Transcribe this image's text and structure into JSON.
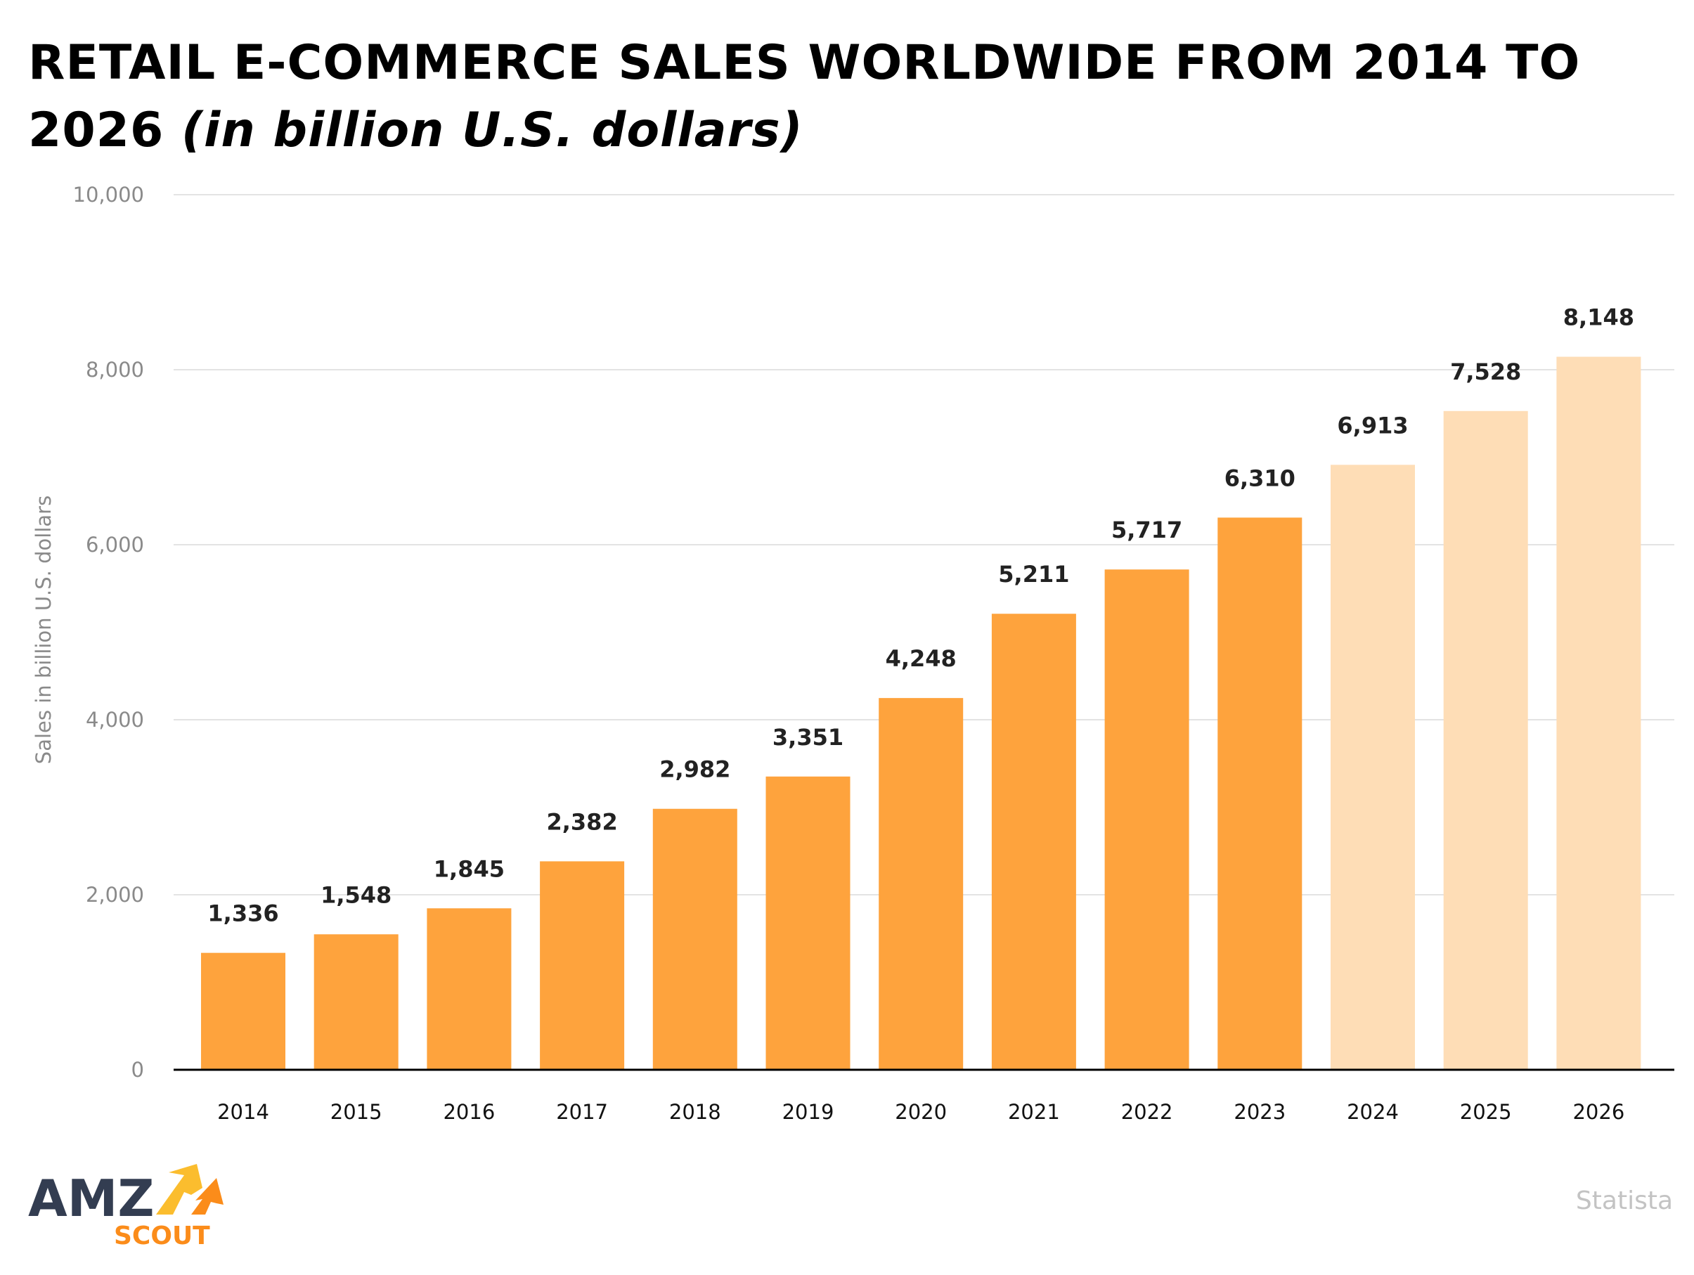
{
  "title": {
    "main": "RETAIL E-COMMERCE SALES WORLDWIDE FROM 2014 TO 2026",
    "sub": "(in billion U.S. dollars)"
  },
  "source": "Statista",
  "logo": {
    "text": "AMZ",
    "subtext": "SCOUT"
  },
  "colors": {
    "actual": "#FEA33D",
    "forecast": "#FEDDB6",
    "grid": "#e3e3e3",
    "axis": "#000000"
  },
  "chart_data": {
    "type": "bar",
    "title": "RETAIL E-COMMERCE SALES WORLDWIDE FROM 2014 TO 2026 (in billion U.S. dollars)",
    "xlabel": "",
    "ylabel": "Sales in billion U.S. dollars",
    "ylim": [
      0,
      10000
    ],
    "yticks": [
      0,
      2000,
      4000,
      6000,
      8000,
      10000
    ],
    "ytick_labels": [
      "0",
      "2,000",
      "4,000",
      "6,000",
      "8,000",
      "10,000"
    ],
    "grid": true,
    "categories": [
      "2014",
      "2015",
      "2016",
      "2017",
      "2018",
      "2019",
      "2020",
      "2021",
      "2022",
      "2023",
      "2024",
      "2025",
      "2026"
    ],
    "values": [
      1336,
      1548,
      1845,
      2382,
      2982,
      3351,
      4248,
      5211,
      5717,
      6310,
      6913,
      7528,
      8148
    ],
    "value_labels": [
      "1,336",
      "1,548",
      "1,845",
      "2,382",
      "2,982",
      "3,351",
      "4,248",
      "5,211",
      "5,717",
      "6,310",
      "6,913",
      "7,528",
      "8,148"
    ],
    "forecast": [
      false,
      false,
      false,
      false,
      false,
      false,
      false,
      false,
      false,
      false,
      true,
      true,
      true
    ]
  }
}
